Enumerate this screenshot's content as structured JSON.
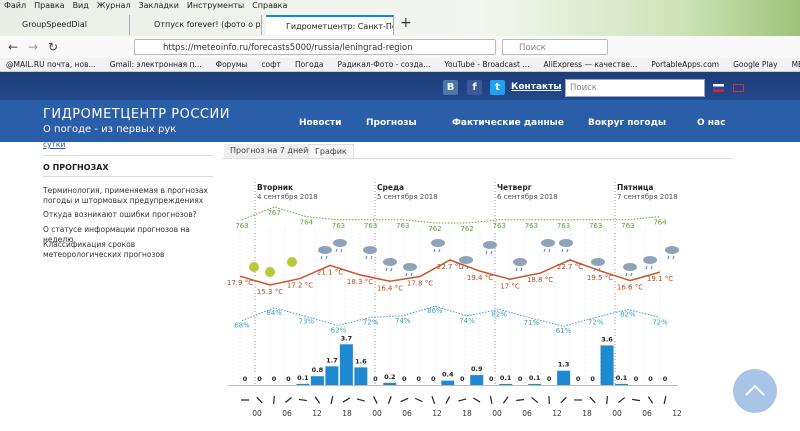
{
  "browser": {
    "menu": [
      "Файл",
      "Правка",
      "Вид",
      "Журнал",
      "Закладки",
      "Инструменты",
      "Справка"
    ],
    "tabs": [
      "GroupSpeedDial",
      "Отпуск forever! (фото о рыба",
      "Гидрометцентр: Санкт-Петер"
    ],
    "url": "https://meteoinfo.ru/forecasts5000/russia/leningrad-region",
    "search": "Поиск",
    "bookmarks": [
      "@MAIL.RU почта, нов...",
      "Gmail: электронная п...",
      "Форумы",
      "софт",
      "Погода",
      "Радикал-Фото - созда...",
      "YouTube - Broadcast ...",
      "AliExpress — качестве...",
      "PortableApps.com",
      "Google Play",
      "MEGA"
    ]
  },
  "site": {
    "title": "ГИДРОМЕТЦЕНТР РОССИИ",
    "subtitle": "О погоде - из первых рук",
    "contacts": "Контакты",
    "search": "Поиск",
    "nav": [
      "Новости",
      "Прогнозы",
      "Фактические данные",
      "Вокруг погоды",
      "О нас"
    ]
  },
  "sidebar": {
    "top_link": "сутки",
    "heading": "О ПРОГНОЗАХ",
    "links": [
      "Терминология, применяемая в прогнозах погоды и штормовых предупреждениях",
      "Откуда возникают ошибки прогнозов?",
      "О статусе информации прогнозов на неделю",
      "Классификация сроков метеорологических прогнозов"
    ]
  },
  "forecast": {
    "tabs": [
      "Прогноз на 7 дней",
      "График"
    ],
    "days": [
      {
        "name": "Вторник",
        "date": "4 сентября 2018"
      },
      {
        "name": "Среда",
        "date": "5 сентября 2018"
      },
      {
        "name": "Четверг",
        "date": "6 сентября 2018"
      },
      {
        "name": "Пятница",
        "date": "7 сентября 2018"
      }
    ],
    "pressure": [
      763,
      767,
      764,
      763,
      763,
      763,
      762,
      762,
      763,
      763,
      763,
      763,
      763,
      764
    ],
    "temperature": [
      {
        "value": 17.9,
        "label": "17.9 °C"
      },
      {
        "value": 15.3,
        "label": "15.3 °C"
      },
      {
        "value": 17.2,
        "label": "17.2 °C"
      },
      {
        "value": 21.1,
        "label": "21.1 °C"
      },
      {
        "value": 18.3,
        "label": "18.3 °C"
      },
      {
        "value": 16.4,
        "label": "16.4 °C"
      },
      {
        "value": 17.8,
        "label": "17.8 °C"
      },
      {
        "value": 22.7,
        "label": "22.7 °C"
      },
      {
        "value": 19.4,
        "label": "19.4 °C"
      },
      {
        "value": 17,
        "label": "17 °C"
      },
      {
        "value": 18.8,
        "label": "18.8 °C"
      },
      {
        "value": 22.7,
        "label": "22.7 °C"
      },
      {
        "value": 19.5,
        "label": "19.5 °C"
      },
      {
        "value": 16.6,
        "label": "16.6 °C"
      },
      {
        "value": 19.1,
        "label": "19.1 °C"
      }
    ],
    "humidity": [
      {
        "value": 68,
        "label": "68%"
      },
      {
        "value": 84,
        "label": "84%"
      },
      {
        "value": 73,
        "label": "73%"
      },
      {
        "value": 62,
        "label": "62%"
      },
      {
        "value": 72,
        "label": "72%"
      },
      {
        "value": 74,
        "label": "74%"
      },
      {
        "value": 86,
        "label": "86%"
      },
      {
        "value": 74,
        "label": "74%"
      },
      {
        "value": 82,
        "label": "82%"
      },
      {
        "value": 71,
        "label": "71%"
      },
      {
        "value": 61,
        "label": "61%"
      },
      {
        "value": 72,
        "label": "72%"
      },
      {
        "value": 82,
        "label": "82%"
      },
      {
        "value": 72,
        "label": "72%"
      }
    ],
    "precipitation": [
      0,
      0,
      0,
      0,
      0.1,
      0.8,
      1.7,
      3.7,
      1.6,
      0,
      0.2,
      0,
      0,
      0,
      0.4,
      0,
      0.9,
      0,
      0.1,
      0,
      0.1,
      0,
      1.3,
      0,
      0,
      3.6,
      0.1,
      0,
      0,
      0
    ],
    "hours": [
      "00",
      "06",
      "12",
      "18",
      "00",
      "06",
      "12",
      "18",
      "00",
      "06",
      "12",
      "18",
      "00",
      "06",
      "12"
    ]
  }
}
